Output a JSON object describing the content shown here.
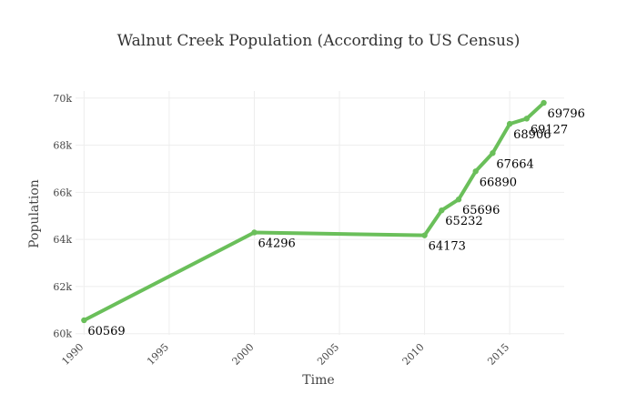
{
  "chart_data": {
    "type": "line",
    "title": "Walnut Creek Population (According to US Census)",
    "xlabel": "Time",
    "ylabel": "Population",
    "xlim": [
      1989.5,
      2018.2
    ],
    "ylim": [
      59950,
      70300
    ],
    "x_ticks": [
      1990,
      1995,
      2000,
      2005,
      2010,
      2015
    ],
    "x_tick_labels": [
      "1990",
      "1995",
      "2000",
      "2005",
      "2010",
      "2015"
    ],
    "y_ticks": [
      60000,
      62000,
      64000,
      66000,
      68000,
      70000
    ],
    "y_tick_labels": [
      "60k",
      "62k",
      "64k",
      "66k",
      "68k",
      "70k"
    ],
    "grid": true,
    "line_color": "#6abf5a",
    "x": [
      1990,
      2000,
      2010,
      2011,
      2012,
      2013,
      2014,
      2015,
      2016,
      2017
    ],
    "y": [
      60569,
      64296,
      64173,
      65232,
      65696,
      66890,
      67664,
      68906,
      69127,
      69796
    ],
    "data_labels": [
      "60569",
      "64296",
      "64173",
      "65232",
      "65696",
      "66890",
      "67664",
      "68906",
      "69127",
      "69796"
    ]
  }
}
